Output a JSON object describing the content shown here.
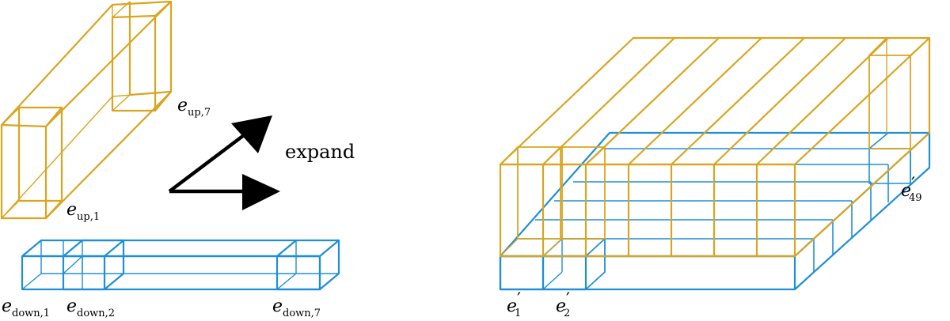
{
  "colors": {
    "gold": "#d9a520",
    "blue": "#1e8fd6",
    "arrow": "#000000"
  },
  "labels": {
    "expand": "expand",
    "e_up_7": {
      "base": "e",
      "sub": "up,7"
    },
    "e_up_1": {
      "base": "e",
      "sub": "up,1"
    },
    "e_down_1": {
      "base": "e",
      "sub": "down,1"
    },
    "e_down_2": {
      "base": "e",
      "sub": "down,2"
    },
    "e_down_7": {
      "base": "e",
      "sub": "down,7"
    },
    "e_prime_1": {
      "base": "e",
      "prime": "′",
      "sub": "1"
    },
    "e_prime_2": {
      "base": "e",
      "prime": "′",
      "sub": "2"
    },
    "e_prime_49": {
      "base": "e",
      "prime": "′",
      "sub": "49"
    }
  }
}
